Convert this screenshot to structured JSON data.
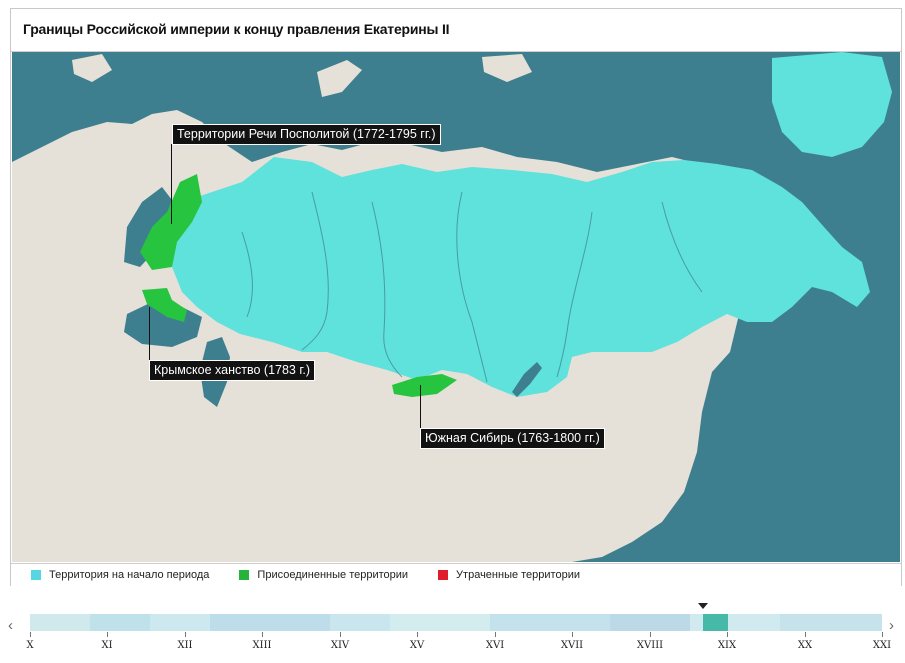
{
  "title": "Границы Российской империи к концу правления Екатерины II",
  "map": {
    "labels": {
      "rzeczpospolita": "Территории Речи Посполитой (1772-1795 гг.)",
      "crimea": "Крымское ханство (1783 г.)",
      "south_siberia": "Южная Сибирь (1763-1800 гг.)"
    }
  },
  "legend": [
    {
      "label": "Территория на начало периода",
      "color": "#56d6e0"
    },
    {
      "label": "Присоединенные территории",
      "color": "#27b33b"
    },
    {
      "label": "Утраченные территории",
      "color": "#e01b2b"
    }
  ],
  "timeline": {
    "centuries": [
      "X",
      "XI",
      "XII",
      "XIII",
      "XIV",
      "XV",
      "XVI",
      "XVII",
      "XVIII",
      "XIX",
      "XX",
      "XXI"
    ],
    "prev_icon": "chevron-left-icon",
    "next_icon": "chevron-right-icon"
  },
  "colors": {
    "sea": "#3d7f8e",
    "land": "#e6e1d8",
    "empire": "#5fe1dc",
    "annexed": "#27c43f"
  }
}
